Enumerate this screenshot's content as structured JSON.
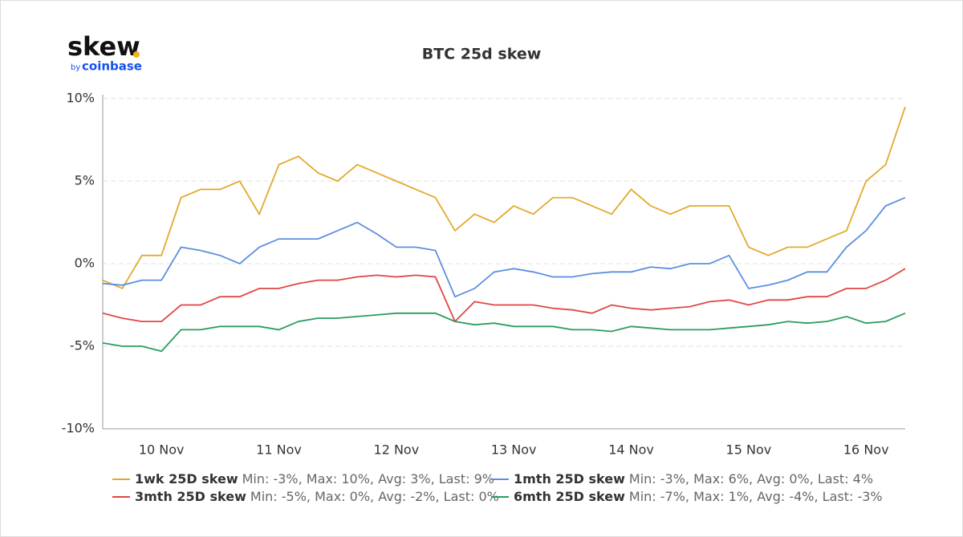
{
  "logo": {
    "name": "skew",
    "by": "by",
    "brand": "coinbase"
  },
  "chart_data": {
    "type": "line",
    "title": "BTC 25d skew",
    "categories": [
      null,
      null,
      null,
      "10 Nov",
      null,
      null,
      null,
      null,
      null,
      "11 Nov",
      null,
      null,
      null,
      null,
      null,
      "12 Nov",
      null,
      null,
      null,
      null,
      null,
      "13 Nov",
      null,
      null,
      null,
      null,
      null,
      "14 Nov",
      null,
      null,
      null,
      null,
      null,
      "15 Nov",
      null,
      null,
      null,
      null,
      null,
      "16 Nov",
      null,
      null
    ],
    "ylim": [
      -10,
      10
    ],
    "yticks": [
      {
        "value": -10,
        "label": "-10%"
      },
      {
        "value": -5,
        "label": "-5%"
      },
      {
        "value": 0,
        "label": "0%"
      },
      {
        "value": 5,
        "label": "5%"
      },
      {
        "value": 10,
        "label": "10%"
      }
    ],
    "grid": true,
    "series": [
      {
        "name": "1wk 25D skew",
        "stats": "Min: -3%, Max: 10%, Avg: 3%, Last: 9%",
        "color": "#e3a92c",
        "values": [
          -1,
          -1.5,
          0.5,
          0.5,
          4,
          4.5,
          4.5,
          5,
          3,
          6,
          6.5,
          5.5,
          5,
          6,
          5.5,
          5,
          4.5,
          4,
          2,
          3,
          2.5,
          3.5,
          3,
          4,
          4,
          3.5,
          3,
          4.5,
          3.5,
          3,
          3.5,
          3.5,
          3.5,
          1,
          0.5,
          1,
          1,
          1.5,
          2,
          5,
          6,
          9.5
        ]
      },
      {
        "name": "1mth 25D skew",
        "stats": "Min: -3%, Max: 6%, Avg: 0%, Last: 4%",
        "color": "#5b8fe0",
        "values": [
          -1.2,
          -1.3,
          -1,
          -1,
          1,
          0.8,
          0.5,
          0,
          1,
          1.5,
          1.5,
          1.5,
          2,
          2.5,
          1.8,
          1,
          1,
          0.8,
          -2,
          -1.5,
          -0.5,
          -0.3,
          -0.5,
          -0.8,
          -0.8,
          -0.6,
          -0.5,
          -0.5,
          -0.2,
          -0.3,
          0,
          0,
          0.5,
          -1.5,
          -1.3,
          -1,
          -0.5,
          -0.5,
          1,
          2,
          3.5,
          4
        ]
      },
      {
        "name": "3mth 25D skew",
        "stats": "Min: -5%, Max: 0%, Avg: -2%, Last: 0%",
        "color": "#e04646",
        "values": [
          -3,
          -3.3,
          -3.5,
          -3.5,
          -2.5,
          -2.5,
          -2,
          -2,
          -1.5,
          -1.5,
          -1.2,
          -1,
          -1,
          -0.8,
          -0.7,
          -0.8,
          -0.7,
          -0.8,
          -3.5,
          -2.3,
          -2.5,
          -2.5,
          -2.5,
          -2.7,
          -2.8,
          -3,
          -2.5,
          -2.7,
          -2.8,
          -2.7,
          -2.6,
          -2.3,
          -2.2,
          -2.5,
          -2.2,
          -2.2,
          -2,
          -2,
          -1.5,
          -1.5,
          -1,
          -0.3
        ]
      },
      {
        "name": "6mth 25D skew",
        "stats": "Min: -7%, Max: 1%, Avg: -4%, Last: -3%",
        "color": "#2a9d5c",
        "values": [
          -4.8,
          -5,
          -5,
          -5.3,
          -4,
          -4,
          -3.8,
          -3.8,
          -3.8,
          -4,
          -3.5,
          -3.3,
          -3.3,
          -3.2,
          -3.1,
          -3,
          -3,
          -3,
          -3.5,
          -3.7,
          -3.6,
          -3.8,
          -3.8,
          -3.8,
          -4,
          -4,
          -4.1,
          -3.8,
          -3.9,
          -4,
          -4,
          -4,
          -3.9,
          -3.8,
          -3.7,
          -3.5,
          -3.6,
          -3.5,
          -3.2,
          -3.6,
          -3.5,
          -3
        ]
      }
    ]
  }
}
